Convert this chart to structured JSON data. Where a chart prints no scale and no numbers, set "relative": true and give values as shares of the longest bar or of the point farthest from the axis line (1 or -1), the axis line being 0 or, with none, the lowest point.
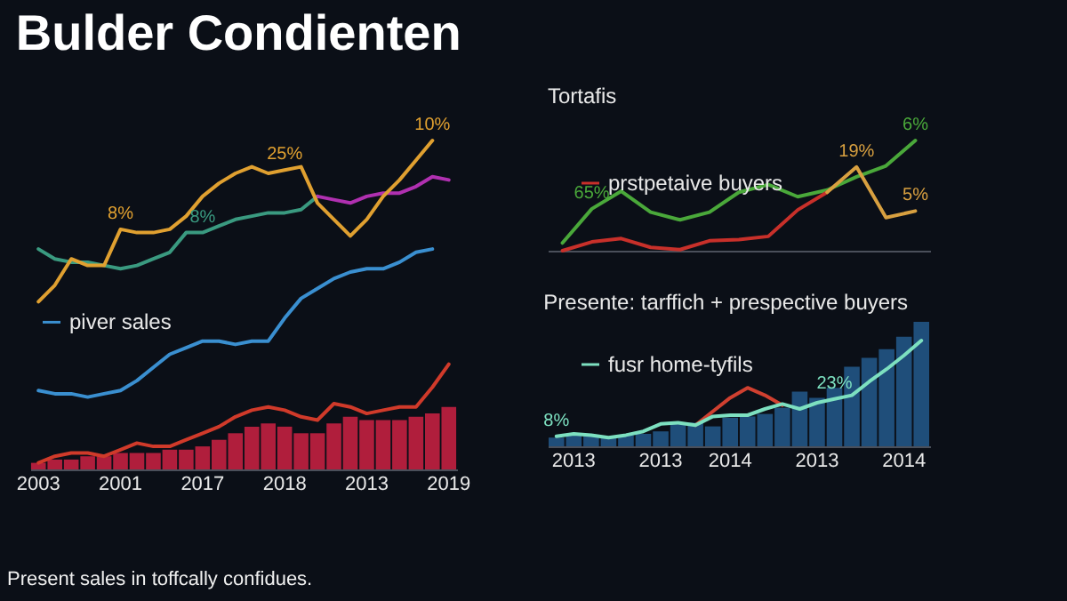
{
  "chart_data": [
    {
      "type": "line",
      "title": "Bulder Condienten",
      "relative": true,
      "legend": "center left",
      "annotations": [
        "Present sales in toffcally confidues.",
        {
          "text": "8%",
          "x": "2001",
          "y": 0.73
        },
        {
          "text": "8%",
          "x": "2017",
          "y": 0.72
        },
        {
          "text": "25%",
          "x": "2018",
          "y": 0.91
        },
        {
          "text": "10%",
          "y": 1
        }
      ],
      "categories": [
        "2003",
        null,
        null,
        null,
        null,
        "2001",
        null,
        null,
        null,
        null,
        "2017",
        null,
        null,
        null,
        null,
        "2018",
        null,
        null,
        null,
        null,
        "2013",
        null,
        null,
        null,
        null,
        "2019"
      ],
      "series": [
        {
          "type": "bar",
          "color": "#b01e3c",
          "values": [
            0.02,
            0.03,
            0.03,
            0.04,
            0.04,
            0.05,
            0.05,
            0.05,
            0.06,
            0.06,
            0.07,
            0.09,
            0.11,
            0.13,
            0.14,
            0.13,
            0.11,
            0.11,
            0.14,
            0.16,
            0.15,
            0.15,
            0.15,
            0.16,
            0.17,
            0.19
          ]
        },
        {
          "color": "#d03a2a",
          "values": [
            0.02,
            0.04,
            0.05,
            0.05,
            0.04,
            0.06,
            0.08,
            0.07,
            0.07,
            0.09,
            0.11,
            0.13,
            0.16,
            0.18,
            0.19,
            0.18,
            0.16,
            0.15,
            0.2,
            0.19,
            0.17,
            0.18,
            0.19,
            0.19,
            0.25,
            0.32
          ]
        },
        {
          "name": "piver sales",
          "color": "#3a8fd0",
          "values": [
            0.24,
            0.23,
            0.23,
            0.22,
            0.23,
            0.24,
            0.27,
            0.31,
            0.35,
            0.37,
            0.39,
            0.39,
            0.38,
            0.39,
            0.39,
            0.46,
            0.52,
            0.55,
            0.58,
            0.6,
            0.61,
            0.61,
            0.63,
            0.66,
            0.67,
            null
          ]
        },
        {
          "color": "#3a9a80",
          "values": [
            0.67,
            0.64,
            0.63,
            0.63,
            0.62,
            0.61,
            0.62,
            0.64,
            0.66,
            0.72,
            0.72,
            0.74,
            0.76,
            0.77,
            0.78,
            0.78,
            0.79,
            0.83,
            null,
            null,
            null,
            null,
            null,
            null,
            null,
            null
          ]
        },
        {
          "color": "#b030b0",
          "values": [
            null,
            null,
            null,
            null,
            null,
            null,
            null,
            null,
            null,
            null,
            null,
            null,
            null,
            null,
            null,
            null,
            null,
            0.83,
            0.82,
            0.81,
            0.83,
            0.84,
            0.84,
            0.86,
            0.89,
            0.88
          ]
        },
        {
          "color": "#e0a030",
          "values": [
            0.51,
            0.56,
            0.64,
            0.62,
            0.62,
            0.73,
            0.72,
            0.72,
            0.73,
            0.77,
            0.83,
            0.87,
            0.9,
            0.92,
            0.9,
            0.91,
            0.92,
            0.81,
            0.76,
            0.71,
            0.76,
            0.83,
            0.88,
            0.94,
            1,
            null
          ]
        }
      ]
    },
    {
      "type": "line",
      "title": "Tortafis",
      "relative": true,
      "legend": "top left",
      "annotations": [
        {
          "text": "65%",
          "y": 0.38
        },
        {
          "text": "19%",
          "y": 0.76
        },
        {
          "text": "6%",
          "y": 1
        },
        {
          "text": "5%",
          "y": 0.36
        }
      ],
      "categories": [
        null,
        null,
        null,
        null,
        null,
        null,
        null,
        null,
        null,
        null,
        null,
        null,
        null
      ],
      "series": [
        {
          "color": "#4aa83a",
          "values": [
            0.07,
            0.38,
            0.54,
            0.35,
            0.28,
            0.35,
            0.53,
            0.6,
            0.49,
            0.55,
            0.67,
            0.77,
            1
          ]
        },
        {
          "name": "prstpetaive buyers",
          "color": "#c8302a",
          "values": [
            0,
            0.08,
            0.11,
            0.03,
            0.01,
            0.09,
            0.1,
            0.13,
            0.37,
            0.53,
            null,
            null,
            null
          ]
        },
        {
          "color": "#d8a040",
          "values": [
            null,
            null,
            null,
            null,
            null,
            null,
            null,
            null,
            null,
            0.53,
            0.76,
            0.3,
            0.36
          ]
        }
      ]
    },
    {
      "type": "bar",
      "title": "Presente: tarffich + prespective buyers",
      "relative": true,
      "legend": "top left",
      "annotations": [
        {
          "text": "8%",
          "y": 0.08
        },
        {
          "text": "23%",
          "y": 0.38
        }
      ],
      "categories": [
        null,
        "2013",
        null,
        null,
        null,
        null,
        "2013",
        null,
        null,
        null,
        "2014",
        null,
        null,
        null,
        null,
        "2013",
        null,
        null,
        null,
        null,
        "2014",
        null
      ],
      "series": [
        {
          "color": "#1f4e7a",
          "values": [
            0.07,
            0.09,
            0.09,
            0.07,
            0.09,
            0.1,
            0.12,
            0.18,
            0.19,
            0.16,
            0.23,
            0.24,
            0.26,
            0.31,
            0.44,
            0.39,
            0.47,
            0.64,
            0.71,
            0.78,
            0.88,
            1
          ]
        },
        {
          "type": "line",
          "color": "#d04030",
          "values": [
            null,
            null,
            null,
            null,
            null,
            null,
            null,
            null,
            0.17,
            0.28,
            0.39,
            0.47,
            0.41,
            0.33,
            null,
            null,
            null,
            null,
            null,
            null,
            null,
            null
          ]
        },
        {
          "type": "line",
          "name": "fusr home-tyfils",
          "color": "#7de0c0",
          "values": [
            0.08,
            0.1,
            0.09,
            0.07,
            0.09,
            0.12,
            0.18,
            0.19,
            0.17,
            0.24,
            0.25,
            0.25,
            0.3,
            0.34,
            0.3,
            0.35,
            0.38,
            0.41,
            0.52,
            0.62,
            0.73,
            0.85
          ]
        }
      ]
    }
  ]
}
